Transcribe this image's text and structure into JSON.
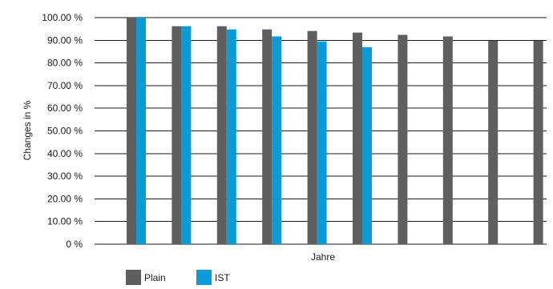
{
  "chart_data": {
    "type": "bar",
    "title": "",
    "xlabel": "Jahre",
    "ylabel": "Changes in %",
    "ylim": [
      0,
      100
    ],
    "y_ticks": [
      "0 %",
      "10.00 %",
      "20.00 %",
      "30.00 %",
      "40.00 %",
      "50.00 %",
      "60.00 %",
      "70.00 %",
      "80.00 %",
      "90.00 %",
      "100.00 %"
    ],
    "categories": [
      "",
      "",
      "",
      "",
      "",
      "",
      "",
      "",
      "",
      ""
    ],
    "series": [
      {
        "name": "Plain",
        "color": "#5f5f5f",
        "values": [
          100,
          96.2,
          96.2,
          94.8,
          94.1,
          93.4,
          92.4,
          91.7,
          89.8,
          89.8
        ]
      },
      {
        "name": "IST",
        "color": "#0a9bd6",
        "values": [
          100,
          96.2,
          94.8,
          91.7,
          89.5,
          86.9,
          null,
          null,
          null,
          null
        ]
      }
    ],
    "grid": true,
    "legend_position": "bottom-left"
  }
}
